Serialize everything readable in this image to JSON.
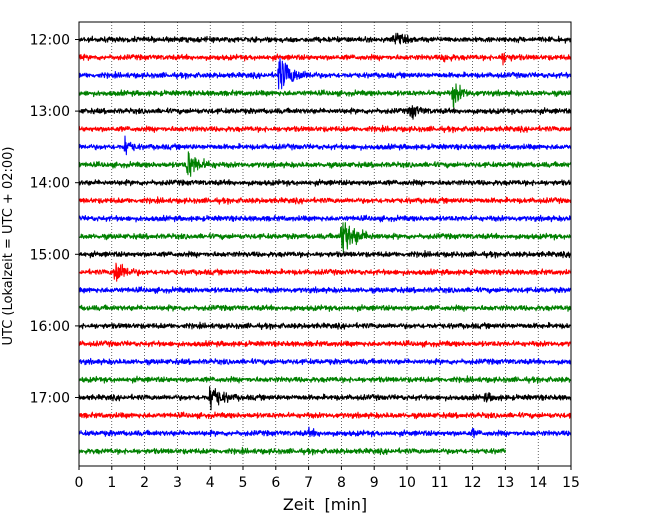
{
  "chart_data": {
    "type": "line",
    "xlabel": "Zeit  [min]",
    "ylabel": "UTC (Lokalzeit = UTC + 02:00)",
    "xlim": [
      0,
      15
    ],
    "x_ticks": [
      "0",
      "1",
      "2",
      "3",
      "4",
      "5",
      "6",
      "7",
      "8",
      "9",
      "10",
      "11",
      "12",
      "13",
      "14",
      "15"
    ],
    "y_ticks": [
      {
        "label": "12:00",
        "row": 0
      },
      {
        "label": "13:00",
        "row": 4
      },
      {
        "label": "14:00",
        "row": 8
      },
      {
        "label": "15:00",
        "row": 12
      },
      {
        "label": "16:00",
        "row": 16
      },
      {
        "label": "17:00",
        "row": 20
      }
    ],
    "grid": "x-dotted",
    "rows_count": 24,
    "minutes_per_row": 15,
    "last_row_end_minute": 13,
    "row_colors": [
      "#000000",
      "#ff0000",
      "#0000ff",
      "#008000"
    ],
    "events": [
      {
        "row": 2,
        "minute": 6.1,
        "amplitude": 1.6,
        "duration": 1.2
      },
      {
        "row": 3,
        "minute": 11.4,
        "amplitude": 1.0,
        "duration": 0.8
      },
      {
        "row": 1,
        "minute": 12.9,
        "amplitude": 0.5,
        "duration": 0.6
      },
      {
        "row": 1,
        "minute": 11.1,
        "amplitude": 0.35,
        "duration": 0.6
      },
      {
        "row": 0,
        "minute": 9.6,
        "amplitude": 0.6,
        "duration": 0.7
      },
      {
        "row": 4,
        "minute": 10.1,
        "amplitude": 0.7,
        "duration": 0.7
      },
      {
        "row": 6,
        "minute": 1.4,
        "amplitude": 0.9,
        "duration": 0.5
      },
      {
        "row": 7,
        "minute": 3.3,
        "amplitude": 1.3,
        "duration": 1.0
      },
      {
        "row": 11,
        "minute": 8.0,
        "amplitude": 1.8,
        "duration": 1.2
      },
      {
        "row": 13,
        "minute": 1.1,
        "amplitude": 1.3,
        "duration": 0.8
      },
      {
        "row": 20,
        "minute": 4.0,
        "amplitude": 1.3,
        "duration": 0.9
      },
      {
        "row": 20,
        "minute": 12.4,
        "amplitude": 0.3,
        "duration": 0.7
      },
      {
        "row": 22,
        "minute": 7.0,
        "amplitude": 0.25,
        "duration": 0.7
      },
      {
        "row": 22,
        "minute": 12.0,
        "amplitude": 0.3,
        "duration": 0.3
      }
    ]
  }
}
